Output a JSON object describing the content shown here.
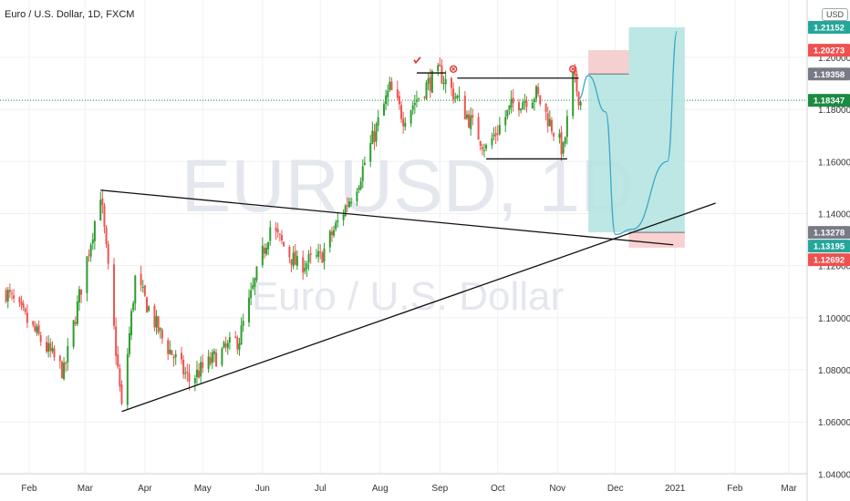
{
  "header": {
    "title": "Euro / U.S. Dollar, 1D, FXCM",
    "currency_button": "USD"
  },
  "watermark": {
    "symbol": "EURUSD, 1D",
    "name": "Euro / U.S. Dollar"
  },
  "colors": {
    "up_candle": "#26a69a",
    "up_candle_body": "#2e9d2e",
    "down_candle": "#ef5350",
    "target_zone": "#b2e3df",
    "stop_zone": "#f9cfcf",
    "path_line": "#3aa8c8",
    "price_tag_green": "#26a69a",
    "price_tag_red": "#f0504f",
    "price_tag_gray": "#787b86",
    "price_tag_current": "#1c8a43"
  },
  "chart_data": {
    "type": "candlestick",
    "symbol": "EURUSD",
    "timeframe": "1D",
    "x_labels": [
      "Feb",
      "Mar",
      "Apr",
      "May",
      "Jun",
      "Jul",
      "Aug",
      "Sep",
      "Oct",
      "Nov",
      "Dec",
      "2021",
      "Feb",
      "Mar"
    ],
    "y_ticks": [
      "1.04000",
      "1.06000",
      "1.08000",
      "1.10000",
      "1.12000",
      "1.14000",
      "1.16000",
      "1.18000",
      "1.20000"
    ],
    "ylim": [
      1.037,
      1.222
    ],
    "grid": true,
    "price_tags": [
      {
        "value": "1.21152",
        "color": "#26a69a"
      },
      {
        "value": "1.20273",
        "color": "#f0504f"
      },
      {
        "value": "1.19358",
        "color": "#787b86"
      },
      {
        "value": "1.18347",
        "color": "#1c8a43"
      },
      {
        "value": "1.13278",
        "color": "#787b86"
      },
      {
        "value": "1.13195",
        "color": "#26a69a"
      },
      {
        "value": "1.12692",
        "color": "#f0504f"
      }
    ],
    "current_price": 1.18347,
    "price_path": [
      {
        "date": "2020-01-20",
        "price": 1.11
      },
      {
        "date": "2020-02-19",
        "price": 1.079
      },
      {
        "date": "2020-03-09",
        "price": 1.148
      },
      {
        "date": "2020-03-20",
        "price": 1.065
      },
      {
        "date": "2020-03-27",
        "price": 1.115
      },
      {
        "date": "2020-04-10",
        "price": 1.092
      },
      {
        "date": "2020-04-24",
        "price": 1.076
      },
      {
        "date": "2020-05-08",
        "price": 1.085
      },
      {
        "date": "2020-05-20",
        "price": 1.092
      },
      {
        "date": "2020-06-05",
        "price": 1.135
      },
      {
        "date": "2020-06-19",
        "price": 1.12
      },
      {
        "date": "2020-07-01",
        "price": 1.123
      },
      {
        "date": "2020-07-21",
        "price": 1.153
      },
      {
        "date": "2020-08-06",
        "price": 1.188
      },
      {
        "date": "2020-08-13",
        "price": 1.177
      },
      {
        "date": "2020-08-26",
        "price": 1.19
      },
      {
        "date": "2020-09-01",
        "price": 1.194
      },
      {
        "date": "2020-09-10",
        "price": 1.184
      },
      {
        "date": "2020-09-25",
        "price": 1.165
      },
      {
        "date": "2020-10-09",
        "price": 1.182
      },
      {
        "date": "2020-10-21",
        "price": 1.186
      },
      {
        "date": "2020-11-04",
        "price": 1.164
      },
      {
        "date": "2020-11-09",
        "price": 1.192
      },
      {
        "date": "2020-11-13",
        "price": 1.183
      }
    ],
    "trendlines": [
      {
        "from": {
          "date": "2020-03-09",
          "price": 1.149
        },
        "to": {
          "date": "2020-12-31",
          "price": 1.128
        }
      },
      {
        "from": {
          "date": "2020-03-20",
          "price": 1.064
        },
        "to": {
          "date": "2021-01-22",
          "price": 1.144
        }
      },
      {
        "from": {
          "date": "2020-08-20",
          "price": 1.194
        },
        "to": {
          "date": "2020-09-04",
          "price": 1.194
        }
      },
      {
        "from": {
          "date": "2020-09-10",
          "price": 1.192
        },
        "to": {
          "date": "2020-11-12",
          "price": 1.192
        }
      },
      {
        "from": {
          "date": "2020-09-25",
          "price": 1.161
        },
        "to": {
          "date": "2020-11-06",
          "price": 1.161
        }
      }
    ],
    "position": {
      "entry_zone": {
        "from_date": "2020-11-17",
        "to_date": "2020-12-08",
        "top": 1.2027,
        "bottom": 1.1328,
        "line": 1.1936
      },
      "short_stop": {
        "from_date": "2020-11-17",
        "to_date": "2020-12-08",
        "top": 1.2027,
        "bottom": 1.1936
      },
      "long_target": {
        "from_date": "2020-12-08",
        "to_date": "2021-01-06",
        "top": 1.2115,
        "bottom": 1.1328
      },
      "long_stop": {
        "from_date": "2020-12-08",
        "to_date": "2021-01-06",
        "top": 1.1328,
        "bottom": 1.1269
      }
    },
    "projection_path": [
      {
        "date": "2020-11-12",
        "price": 1.184
      },
      {
        "date": "2020-11-17",
        "price": 1.193
      },
      {
        "date": "2020-11-26",
        "price": 1.179
      },
      {
        "date": "2020-12-01",
        "price": 1.132
      },
      {
        "date": "2020-12-10",
        "price": 1.134
      },
      {
        "date": "2020-12-28",
        "price": 1.16
      },
      {
        "date": "2021-01-02",
        "price": 1.21
      }
    ],
    "markers": [
      {
        "date": "2020-08-20",
        "price": 1.199,
        "type": "check",
        "color": "#e53935"
      },
      {
        "date": "2020-09-08",
        "price": 1.1955,
        "type": "x",
        "color": "#e53935"
      },
      {
        "date": "2020-11-09",
        "price": 1.1955,
        "type": "x",
        "color": "#e53935"
      }
    ]
  }
}
